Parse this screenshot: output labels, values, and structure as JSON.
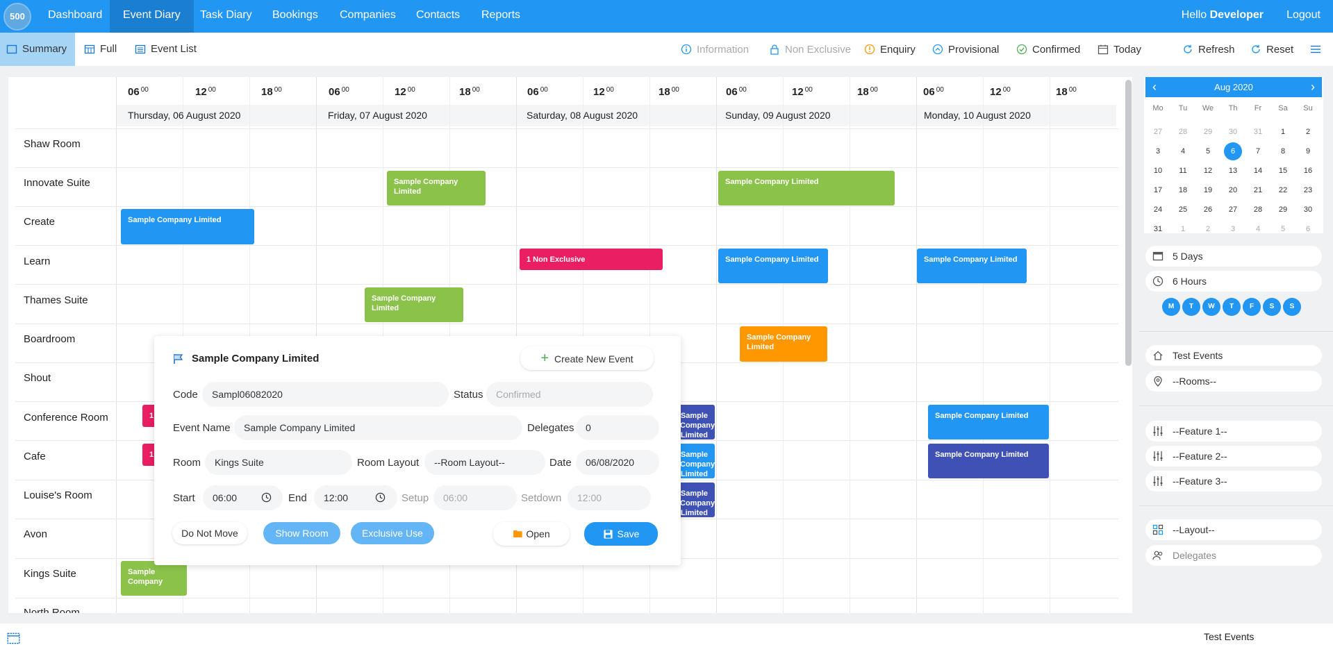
{
  "app": {
    "logo": "500"
  },
  "nav": {
    "items": [
      "Dashboard",
      "Event Diary",
      "Task Diary",
      "Bookings",
      "Companies",
      "Contacts",
      "Reports"
    ],
    "hello": "Hello",
    "user": "Developer",
    "logout": "Logout"
  },
  "toolbar": {
    "views": [
      "Summary",
      "Full",
      "Event List"
    ],
    "legend": [
      "Information",
      "Non Exclusive",
      "Enquiry",
      "Provisional",
      "Confirmed"
    ],
    "today": "Today",
    "refresh": "Refresh",
    "reset": "Reset"
  },
  "grid": {
    "hours": [
      "06",
      "12",
      "18"
    ],
    "hour_suffix": "00",
    "days": [
      "Thursday, 06 August 2020",
      "Friday, 07 August 2020",
      "Saturday, 08 August 2020",
      "Sunday, 09 August 2020",
      "Monday, 10 August 2020"
    ],
    "rooms": [
      "Shaw Room",
      "Innovate Suite",
      "Create",
      "Learn",
      "Thames Suite",
      "Boardroom",
      "Shout",
      "Conference Room",
      "Cafe",
      "Louise's Room",
      "Avon",
      "Kings Suite",
      "North Room"
    ],
    "events": {
      "e1": "Sample Company Limited",
      "e2": "Sample Company Limited",
      "e3": "Sample Company Limited",
      "e4": "1 Non Exclusive",
      "e5": "Sample Company Limited",
      "e6": "Sample Company Limited",
      "e7": "Sample Company Limited",
      "e8": "Sample Company Limited",
      "e9": "Sample Company Limited",
      "e10": "Sample Company Limited",
      "e11": "Sample Company",
      "e12": "1",
      "e13": "1",
      "e14": "Sample Company Limited",
      "e15": "Sample Company Limited",
      "e16": "Sample Company Limited"
    }
  },
  "popup": {
    "title": "Sample Company Limited",
    "create_new": "Create New Event",
    "code_label": "Code",
    "code": "Sampl06082020",
    "status_label": "Status",
    "status": "Confirmed",
    "name_label": "Event Name",
    "name": "Sample Company Limited",
    "delegates_label": "Delegates",
    "delegates": "0",
    "room_label": "Room",
    "room": "Kings Suite",
    "layout_label": "Room Layout",
    "layout": "--Room Layout--",
    "date_label": "Date",
    "date": "06/08/2020",
    "start_label": "Start",
    "start": "06:00",
    "end_label": "End",
    "end": "12:00",
    "setup_label": "Setup",
    "setup": "06:00",
    "setdown_label": "Setdown",
    "setdown": "12:00",
    "btn_dnm": "Do Not Move",
    "btn_show": "Show Room",
    "btn_excl": "Exclusive Use",
    "btn_open": "Open",
    "btn_save": "Save"
  },
  "calendar": {
    "month": "Aug 2020",
    "weekdays": [
      "Mo",
      "Tu",
      "We",
      "Th",
      "Fr",
      "Sa",
      "Su"
    ],
    "weeks": [
      [
        "27",
        "28",
        "29",
        "30",
        "31",
        "1",
        "2"
      ],
      [
        "3",
        "4",
        "5",
        "6",
        "7",
        "8",
        "9"
      ],
      [
        "10",
        "11",
        "12",
        "13",
        "14",
        "15",
        "16"
      ],
      [
        "17",
        "18",
        "19",
        "20",
        "21",
        "22",
        "23"
      ],
      [
        "24",
        "25",
        "26",
        "27",
        "28",
        "29",
        "30"
      ],
      [
        "31",
        "1",
        "2",
        "3",
        "4",
        "5",
        "6"
      ]
    ],
    "selected": "6"
  },
  "side": {
    "days": "5 Days",
    "hours": "6 Hours",
    "daybtns": [
      "M",
      "T",
      "W",
      "T",
      "F",
      "S",
      "S"
    ],
    "events": "Test Events",
    "rooms": "--Rooms--",
    "feature1": "--Feature 1--",
    "feature2": "--Feature 2--",
    "feature3": "--Feature 3--",
    "layout": "--Layout--",
    "delegates": "Delegates"
  },
  "footer": {
    "text": "Test Events"
  },
  "colors": {
    "primary": "#2196f3",
    "green": "#8bc34a",
    "red": "#e91e63",
    "orange": "#ff9800",
    "indigo": "#3f51b5"
  }
}
